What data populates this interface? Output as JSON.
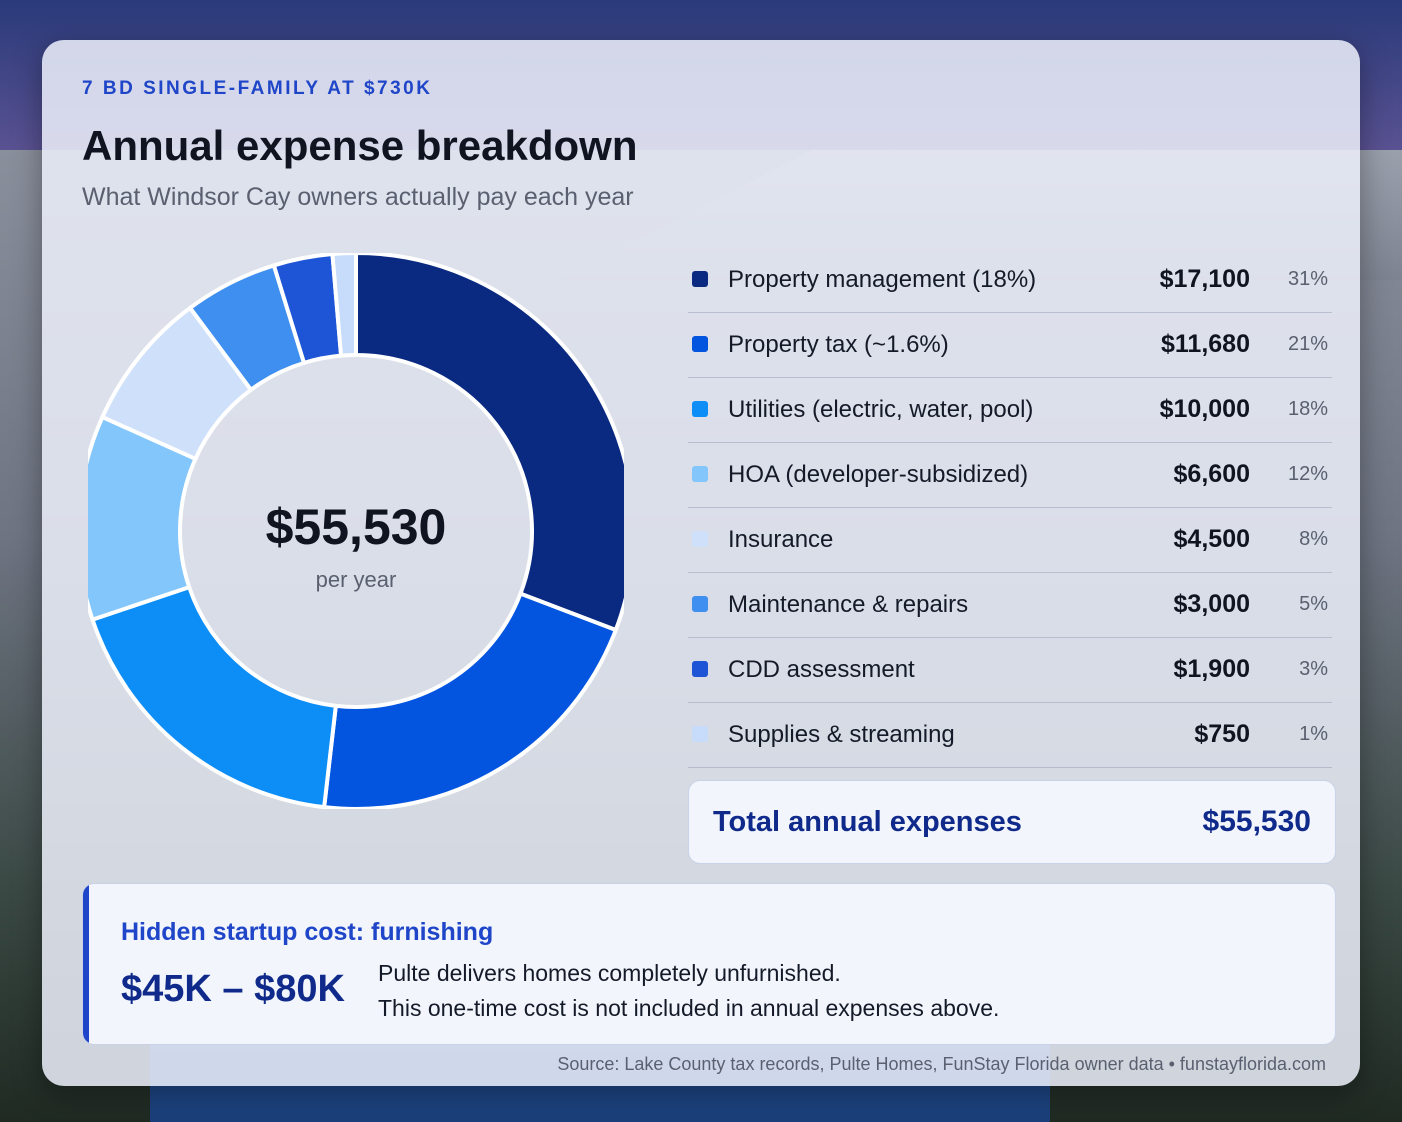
{
  "header": {
    "eyebrow": "7 BD SINGLE-FAMILY AT $730K",
    "title": "Annual expense breakdown",
    "subtitle": "What Windsor Cay owners actually pay each year"
  },
  "center": {
    "value": "$55,530",
    "label": "per year"
  },
  "chart_data": {
    "type": "pie",
    "variant": "donut",
    "categories": [
      "Property management (18%)",
      "Property tax (~1.6%)",
      "Utilities (electric, water, pool)",
      "HOA (developer-subsidized)",
      "Insurance",
      "Maintenance & repairs",
      "CDD assessment",
      "Supplies & streaming"
    ],
    "values": [
      17100,
      11680,
      10000,
      6600,
      4500,
      3000,
      1900,
      750
    ],
    "amount_labels": [
      "$17,100",
      "$11,680",
      "$10,000",
      "$6,600",
      "$4,500",
      "$3,000",
      "$1,900",
      "$750"
    ],
    "percent_labels": [
      "31%",
      "21%",
      "18%",
      "12%",
      "8%",
      "5%",
      "3%",
      "1%"
    ],
    "colors": [
      "#0a2a82",
      "#0355e0",
      "#0d8ef7",
      "#82c6fb",
      "#cfe0fa",
      "#3f8ff0",
      "#1e55d6",
      "#c6dcfa"
    ],
    "total": 55530
  },
  "total_row": {
    "label": "Total annual expenses",
    "value": "$55,530"
  },
  "callout": {
    "title": "Hidden startup cost: furnishing",
    "range": "$45K – $80K",
    "line1": "Pulte delivers homes completely unfurnished.",
    "line2": "This one-time cost is not included in annual expenses above."
  },
  "source": "Source: Lake County tax records, Pulte Homes, FunStay Florida owner data • funstayflorida.com"
}
